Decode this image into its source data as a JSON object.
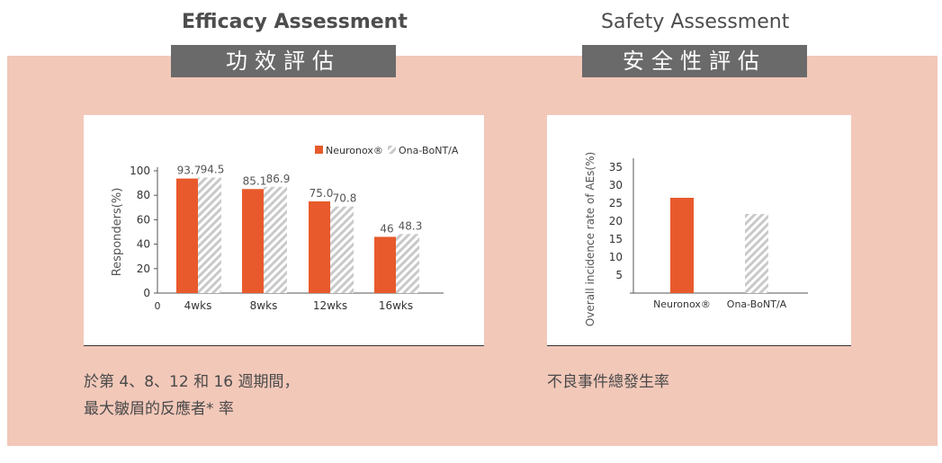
{
  "efficacy": {
    "title_en": "Efficacy Assessment",
    "title_zh": "功效評估",
    "caption_line1": "於第 4、8、12 和 16 週期間，",
    "caption_line2": "最大皺眉的反應者* 率"
  },
  "safety": {
    "title_en": "Safety Assessment",
    "title_zh": "安全性評估",
    "caption": "不良事件總發生率"
  },
  "colors": {
    "neuronox": "#e85a2c",
    "ona": "#c9c9c9",
    "panel_bg": "#f2c8b9"
  },
  "chart_data": [
    {
      "type": "bar",
      "title": "",
      "xlabel": "",
      "ylabel": "Responders(%)",
      "ylim": [
        0,
        100
      ],
      "yticks": [
        0,
        20,
        40,
        60,
        80,
        100
      ],
      "x_origin_label": "0",
      "categories": [
        "4wks",
        "8wks",
        "12wks",
        "16wks"
      ],
      "series": [
        {
          "name": "Neuronox®",
          "values": [
            93.7,
            85.1,
            75.0,
            46
          ],
          "labels": [
            "93.7",
            "85.1",
            "75.0",
            "46"
          ]
        },
        {
          "name": "Ona-BoNT/A",
          "values": [
            94.5,
            86.9,
            70.8,
            48.3
          ],
          "labels": [
            "94.5",
            "86.9",
            "70.8",
            "48.3"
          ]
        }
      ],
      "legend": "top-right",
      "grid": false
    },
    {
      "type": "bar",
      "title": "",
      "xlabel": "",
      "ylabel": "Overall incidence rate of AEs(%)",
      "ylim": [
        0,
        35
      ],
      "yticks": [
        5,
        10,
        15,
        20,
        25,
        30,
        35
      ],
      "categories": [
        "Neuronox®",
        "Ona-BoNT/A"
      ],
      "values": [
        26.5,
        22
      ],
      "legend": "none",
      "grid": false
    }
  ]
}
